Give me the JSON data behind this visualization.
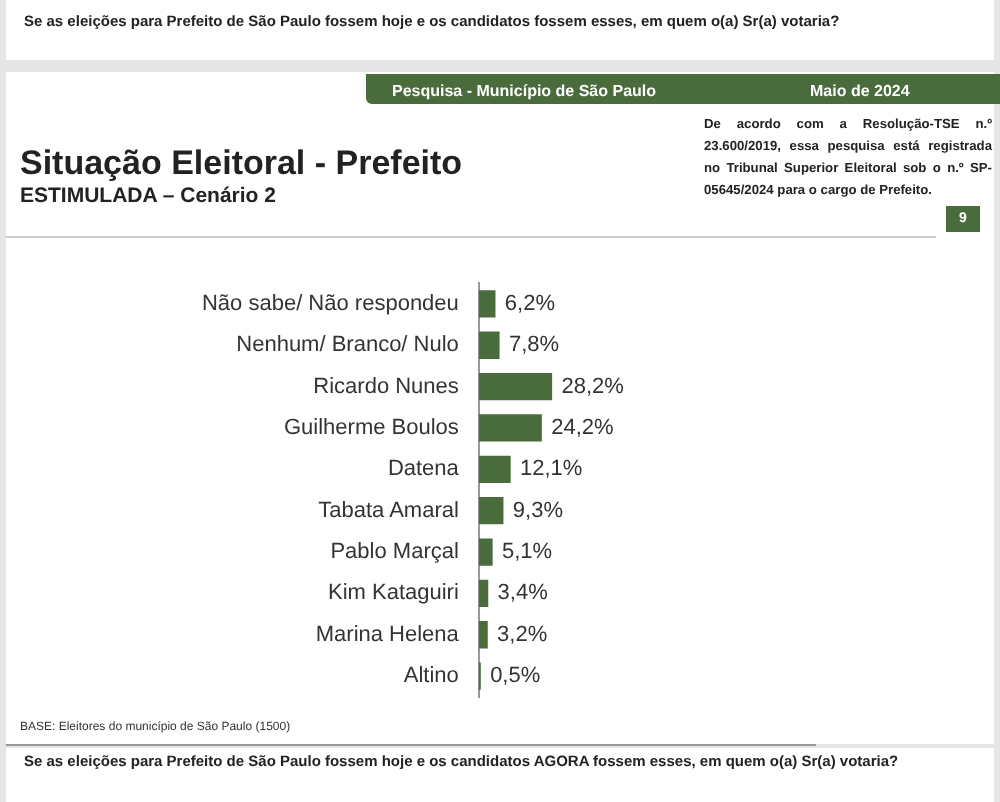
{
  "chart_data": {
    "type": "bar",
    "orientation": "horizontal",
    "title": "Situação Eleitoral - Prefeito",
    "subtitle": "ESTIMULADA – Cenário 2",
    "categories": [
      "Não sabe/ Não respondeu",
      "Nenhum/ Branco/ Nulo",
      "Ricardo Nunes",
      "Guilherme Boulos",
      "Datena",
      "Tabata Amaral",
      "Pablo Marçal",
      "Kim Kataguiri",
      "Marina Helena",
      "Altino"
    ],
    "values": [
      6.2,
      7.8,
      28.2,
      24.2,
      12.1,
      9.3,
      5.1,
      3.4,
      3.2,
      0.5
    ],
    "value_labels": [
      "6,2%",
      "7,8%",
      "28,2%",
      "24,2%",
      "12,1%",
      "9,3%",
      "5,1%",
      "3,4%",
      "3,2%",
      "0,5%"
    ],
    "color": "#4a6b3c",
    "legend": false,
    "tick_labels": "y",
    "annotations": [
      "Se as eleições para Prefeito de São Paulo fossem hoje e os candidatos fossem esses, em quem o(a) Sr(a) votaria?",
      "Pesquisa - Município de São Paulo",
      "Maio de 2024",
      "De acordo com a Resolução-TSE n.º 23.600/2019, essa pesquisa está registrada no Tribunal Superior Eleitoral sob o n.º SP-05645/2024 para o cargo de Prefeito.",
      "9",
      "BASE: Eleitores do município de São Paulo (1500)",
      "Se as eleições para Prefeito de São Paulo fossem hoje e os candidatos AGORA fossem esses, em quem o(a) Sr(a) votaria?"
    ]
  }
}
